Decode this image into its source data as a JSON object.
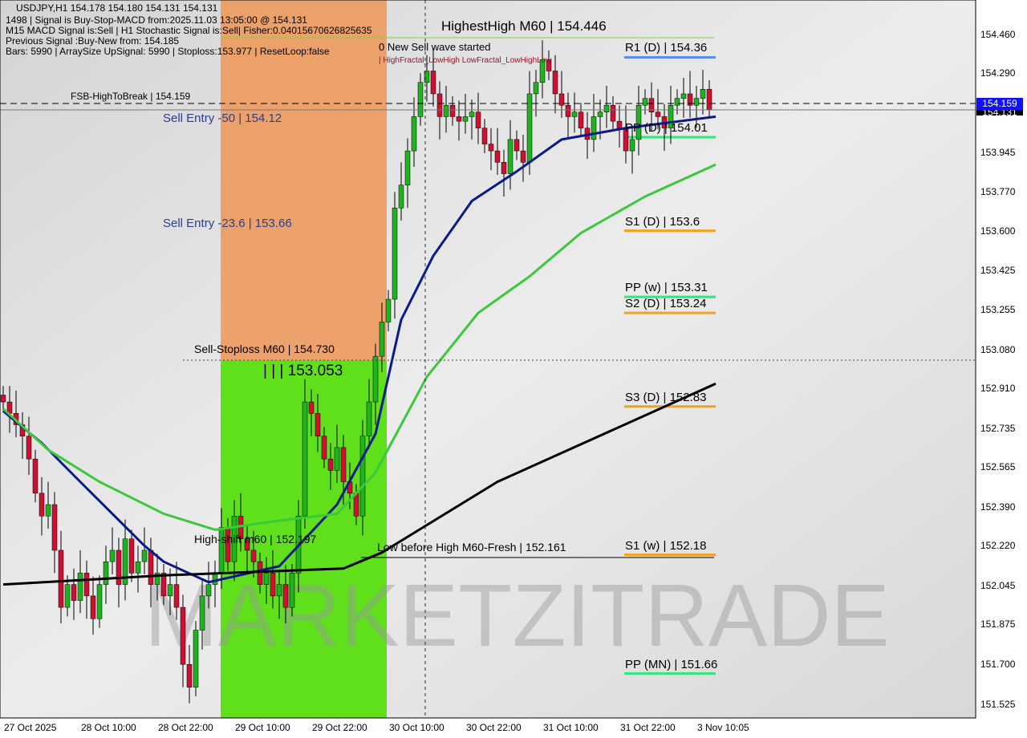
{
  "header": {
    "line1": "USDJPY,H1  154.178 154.180 154.131 154.131",
    "line2": "1498 | Signal is Buy-Stop-MACD from:2025.11.03 13:05:00 @ 154.131",
    "line3": "M15 MACD Signal is:Sell | H1 Stochastic Signal is:Sell| Fisher:0.0401567062682563​5",
    "line4": "Previous Signal :Buy-New from: 154.185",
    "line5": "Bars: 5990 | ArraySize UpSignal: 5990 | Stoploss:153.977 | ResetLoop:false"
  },
  "annotations": {
    "fsb": "FSB-HighToBreak | 154.159",
    "sell_entry_50": "Sell Entry -50 | 154.12",
    "sell_entry_236": "Sell Entry -23.6 | 153.66",
    "sell_stoploss": "Sell-Stoploss M60 | 154.730",
    "level_153053": "| | | 153.053",
    "high_shift": "High-shift m60 | 152.197",
    "low_before_high": "Low before High   M60-Fresh | 152.161",
    "highest_high": "HighestHigh   M60 | 154.446",
    "new_sell_wave": "0 New Sell wave started",
    "fractal_text": "| HighFractal_LowHigh  LowFractal_LowHighLow",
    "watermark": "MARKETZITRADE"
  },
  "levels": [
    {
      "label": "R1 (D) | 154.36",
      "value": 154.36,
      "color": "#5b8def"
    },
    {
      "label": "PP (D) | 154.01",
      "value": 154.01,
      "color": "#2ee87a"
    },
    {
      "label": "S1 (D) | 153.6",
      "value": 153.6,
      "color": "#f2a21b"
    },
    {
      "label": "PP (w) | 153.31",
      "value": 153.31,
      "color": "#2ee87a"
    },
    {
      "label": "S2 (D) | 153.24",
      "value": 153.24,
      "color": "#f2a21b"
    },
    {
      "label": "S3 (D) | 152.83",
      "value": 152.83,
      "color": "#f2a21b"
    },
    {
      "label": "S1 (w) | 152.18",
      "value": 152.18,
      "color": "#f2a21b"
    },
    {
      "label": "PP (MN) | 151.66",
      "value": 151.66,
      "color": "#2ee87a"
    }
  ],
  "chart_data": {
    "type": "candlestick",
    "symbol": "USDJPY",
    "timeframe": "H1",
    "ylim": [
      151.45,
      154.6
    ],
    "y_ticks": [
      "154.460",
      "154.290",
      "153.945",
      "153.770",
      "153.600",
      "153.425",
      "153.255",
      "153.080",
      "152.910",
      "152.735",
      "152.565",
      "152.390",
      "152.220",
      "152.045",
      "151.875",
      "151.700",
      "151.525"
    ],
    "x_ticks": [
      "27 Oct 2025",
      "28 Oct 10:00",
      "28 Oct 22:00",
      "29 Oct 10:00",
      "29 Oct 22:00",
      "30 Oct 10:00",
      "30 Oct 22:00",
      "31 Oct 10:00",
      "31 Oct 22:00",
      "3 Nov 10:05"
    ],
    "bid_price": "154.159",
    "last_price": "154.131",
    "closes": [
      152.85,
      152.8,
      152.75,
      152.7,
      152.6,
      152.45,
      152.35,
      152.4,
      152.2,
      151.95,
      152.05,
      151.98,
      152.1,
      152.0,
      151.9,
      152.05,
      152.15,
      152.2,
      152.05,
      152.25,
      152.1,
      152.15,
      152.2,
      152.05,
      152.1,
      152.0,
      152.05,
      151.95,
      151.7,
      151.6,
      151.85,
      152.0,
      152.05,
      152.1,
      152.3,
      152.15,
      152.35,
      152.25,
      152.2,
      152.15,
      152.05,
      152.1,
      152.0,
      152.05,
      151.95,
      152.1,
      152.35,
      152.85,
      152.8,
      152.7,
      152.6,
      152.55,
      152.65,
      152.5,
      152.45,
      152.35,
      152.7,
      152.85,
      153.05,
      153.2,
      153.3,
      153.7,
      153.8,
      153.95,
      154.1,
      154.25,
      154.3,
      154.2,
      154.1,
      154.15,
      154.1,
      154.08,
      154.1,
      154.12,
      154.05,
      153.98,
      153.95,
      153.9,
      153.85,
      154.0,
      153.95,
      153.9,
      154.2,
      154.25,
      154.35,
      154.3,
      154.2,
      154.15,
      154.1,
      154.12,
      154.05,
      154.0,
      154.1,
      154.12,
      154.15,
      154.08,
      154.05,
      153.95,
      154.0,
      154.15,
      154.18,
      154.12,
      154.1,
      154.05,
      154.15,
      154.18,
      154.2,
      154.15,
      154.18,
      154.22,
      154.131
    ],
    "moving_averages": [
      {
        "color": "#0a1a8c",
        "points": [
          [
            0,
            152.81
          ],
          [
            6,
            152.67
          ],
          [
            12,
            152.5
          ],
          [
            22,
            152.22
          ],
          [
            25,
            152.15
          ],
          [
            32,
            152.06
          ],
          [
            43,
            152.13
          ],
          [
            52,
            152.4
          ],
          [
            58,
            152.71
          ],
          [
            62,
            153.21
          ],
          [
            67,
            153.49
          ],
          [
            73,
            153.73
          ],
          [
            80,
            153.86
          ],
          [
            87,
            154.0
          ],
          [
            97,
            154.05
          ],
          [
            111,
            154.1
          ]
        ]
      },
      {
        "color": "#3cc83c",
        "points": [
          [
            0,
            152.82
          ],
          [
            7,
            152.64
          ],
          [
            15,
            152.5
          ],
          [
            25,
            152.36
          ],
          [
            33,
            152.29
          ],
          [
            43,
            152.33
          ],
          [
            52,
            152.36
          ],
          [
            58,
            152.54
          ],
          [
            66,
            152.96
          ],
          [
            74,
            153.24
          ],
          [
            82,
            153.4
          ],
          [
            90,
            153.59
          ],
          [
            100,
            153.75
          ],
          [
            111,
            153.89
          ]
        ]
      },
      {
        "color": "#000000",
        "points": [
          [
            0,
            152.05
          ],
          [
            25,
            152.09
          ],
          [
            53,
            152.12
          ],
          [
            59,
            152.19
          ],
          [
            77,
            152.5
          ],
          [
            111,
            152.93
          ]
        ]
      }
    ]
  }
}
